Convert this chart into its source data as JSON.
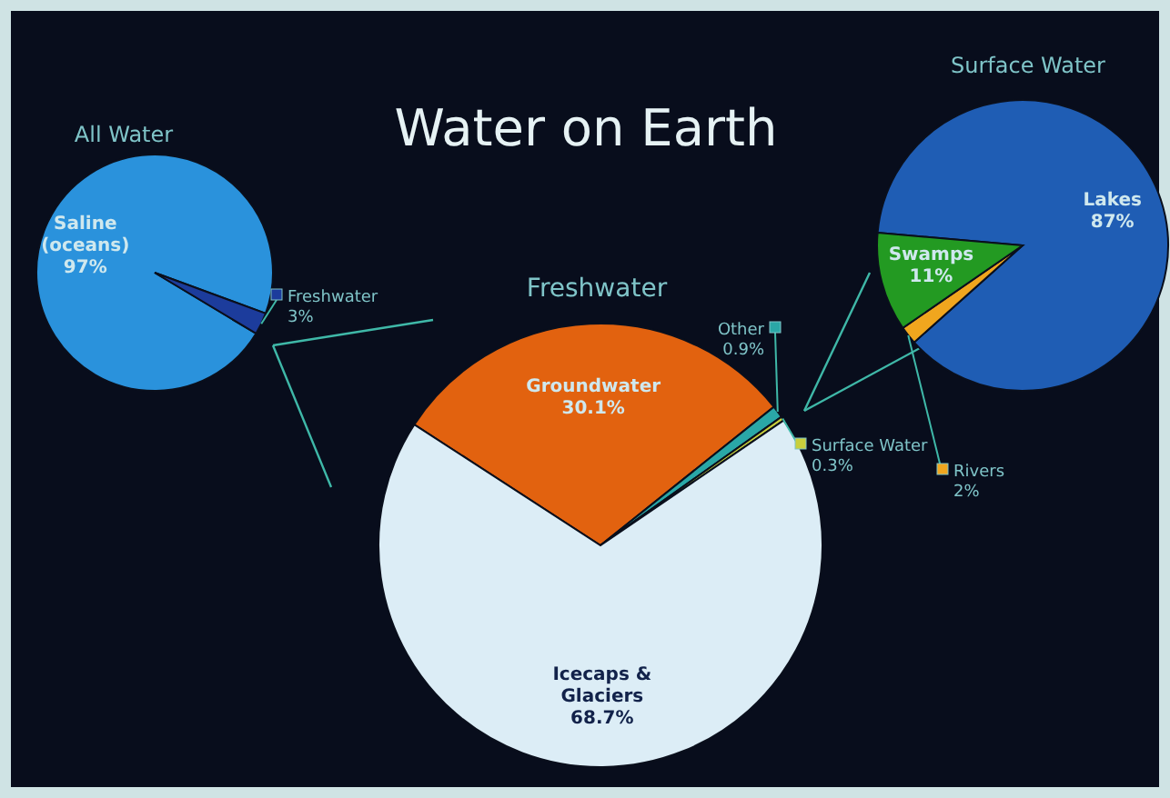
{
  "chart_data": [
    {
      "type": "other",
      "title": "Water on Earth"
    },
    {
      "type": "pie",
      "title": "All Water",
      "categories": [
        "Saline (oceans)",
        "Freshwater"
      ],
      "values": [
        97,
        3
      ],
      "value_labels": [
        "97%",
        "3%"
      ],
      "colors": [
        "#2a92dc",
        "#1c3c9c"
      ]
    },
    {
      "type": "pie",
      "title": "Freshwater",
      "categories": [
        "Groundwater",
        "Other",
        "Surface Water",
        "Icecaps & Glaciers"
      ],
      "values": [
        30.1,
        0.9,
        0.3,
        68.7
      ],
      "value_labels": [
        "30.1%",
        "0.9%",
        "0.3%",
        "68.7%"
      ],
      "colors": [
        "#e2620f",
        "#2aa7a7",
        "#c9cf3c",
        "#dcedf6"
      ]
    },
    {
      "type": "pie",
      "title": "Surface Water",
      "categories": [
        "Lakes",
        "Rivers",
        "Swamps"
      ],
      "values": [
        87,
        2,
        11
      ],
      "value_labels": [
        "87%",
        "2%",
        "11%"
      ],
      "colors": [
        "#1f5db4",
        "#f0a61e",
        "#239a22"
      ]
    }
  ]
}
